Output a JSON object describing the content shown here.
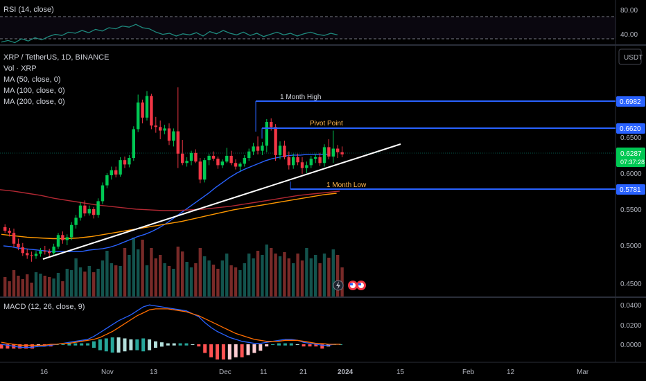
{
  "rsi": {
    "title": "RSI (14, close)",
    "ticks": [
      "80.00",
      "40.00"
    ]
  },
  "main": {
    "title": "XRP / TetherUS, 1D, BINANCE",
    "indicators": [
      "Vol · XRP",
      "MA (50, close, 0)",
      "MA (100, close, 0)",
      "MA (200, close, 0)"
    ],
    "currency": "USDT",
    "price_ticks": [
      "0.6500",
      "0.6000",
      "0.5500",
      "0.5000",
      "0.4500"
    ],
    "levels": [
      {
        "label": "1 Month High",
        "value": "0.6982",
        "color": "#2962ff"
      },
      {
        "label": "Pivot Point",
        "value": "0.6620",
        "color": "#2962ff"
      },
      {
        "label": "1 Month Low",
        "value": "0.5781",
        "color": "#2962ff"
      }
    ],
    "current": {
      "price": "0.6287",
      "countdown": "07:37:28",
      "color": "#089981"
    }
  },
  "macd": {
    "title": "MACD (12, 26, close, 9)",
    "ticks": [
      "0.0400",
      "0.0200",
      "0.0000"
    ]
  },
  "xaxis": [
    "16",
    "Nov",
    "13",
    "Dec",
    "11",
    "21",
    "2024",
    "15",
    "Feb",
    "12",
    "Mar"
  ],
  "colors": {
    "up": "#00c853",
    "down": "#f23645",
    "ma50": "#2962ff",
    "ma100": "#ff9800",
    "ma200": "#b22833",
    "macd": "#2962ff",
    "signal": "#ff6d00"
  },
  "chart_data": {
    "type": "candlestick",
    "title": "XRP / TetherUS, 1D, BINANCE",
    "ylabel": "USDT",
    "ylim": [
      0.44,
      0.73
    ],
    "candles": [
      [
        0.528,
        0.532,
        0.52,
        0.523
      ],
      [
        0.523,
        0.527,
        0.515,
        0.52
      ],
      [
        0.52,
        0.526,
        0.5,
        0.505
      ],
      [
        0.505,
        0.512,
        0.496,
        0.5
      ],
      [
        0.5,
        0.506,
        0.488,
        0.492
      ],
      [
        0.492,
        0.498,
        0.484,
        0.489
      ],
      [
        0.489,
        0.494,
        0.48,
        0.488
      ],
      [
        0.488,
        0.495,
        0.484,
        0.491
      ],
      [
        0.491,
        0.499,
        0.487,
        0.495
      ],
      [
        0.495,
        0.502,
        0.49,
        0.494
      ],
      [
        0.494,
        0.498,
        0.486,
        0.492
      ],
      [
        0.492,
        0.505,
        0.489,
        0.501
      ],
      [
        0.501,
        0.52,
        0.498,
        0.517
      ],
      [
        0.517,
        0.522,
        0.505,
        0.51
      ],
      [
        0.51,
        0.518,
        0.503,
        0.514
      ],
      [
        0.514,
        0.535,
        0.51,
        0.531
      ],
      [
        0.531,
        0.545,
        0.526,
        0.541
      ],
      [
        0.541,
        0.563,
        0.537,
        0.558
      ],
      [
        0.558,
        0.565,
        0.543,
        0.547
      ],
      [
        0.547,
        0.558,
        0.544,
        0.553
      ],
      [
        0.553,
        0.556,
        0.54,
        0.545
      ],
      [
        0.545,
        0.568,
        0.541,
        0.564
      ],
      [
        0.564,
        0.59,
        0.56,
        0.586
      ],
      [
        0.586,
        0.603,
        0.582,
        0.6
      ],
      [
        0.6,
        0.612,
        0.594,
        0.607
      ],
      [
        0.607,
        0.612,
        0.597,
        0.601
      ],
      [
        0.601,
        0.625,
        0.598,
        0.621
      ],
      [
        0.621,
        0.626,
        0.61,
        0.615
      ],
      [
        0.615,
        0.628,
        0.611,
        0.624
      ],
      [
        0.624,
        0.668,
        0.62,
        0.664
      ],
      [
        0.664,
        0.712,
        0.66,
        0.701
      ],
      [
        0.701,
        0.705,
        0.672,
        0.68
      ],
      [
        0.68,
        0.717,
        0.676,
        0.71
      ],
      [
        0.71,
        0.713,
        0.664,
        0.669
      ],
      [
        0.669,
        0.681,
        0.659,
        0.667
      ],
      [
        0.667,
        0.676,
        0.65,
        0.662
      ],
      [
        0.662,
        0.67,
        0.657,
        0.665
      ],
      [
        0.665,
        0.672,
        0.642,
        0.648
      ],
      [
        0.648,
        0.665,
        0.64,
        0.661
      ],
      [
        0.661,
        0.722,
        0.61,
        0.63
      ],
      [
        0.63,
        0.649,
        0.614,
        0.617
      ],
      [
        0.617,
        0.625,
        0.612,
        0.62
      ],
      [
        0.62,
        0.634,
        0.614,
        0.631
      ],
      [
        0.631,
        0.636,
        0.617,
        0.619
      ],
      [
        0.619,
        0.624,
        0.589,
        0.594
      ],
      [
        0.594,
        0.624,
        0.59,
        0.621
      ],
      [
        0.621,
        0.63,
        0.614,
        0.627
      ],
      [
        0.627,
        0.633,
        0.62,
        0.623
      ],
      [
        0.623,
        0.626,
        0.609,
        0.614
      ],
      [
        0.614,
        0.622,
        0.61,
        0.619
      ],
      [
        0.619,
        0.638,
        0.617,
        0.627
      ],
      [
        0.627,
        0.634,
        0.614,
        0.617
      ],
      [
        0.617,
        0.622,
        0.608,
        0.612
      ],
      [
        0.612,
        0.618,
        0.606,
        0.616
      ],
      [
        0.616,
        0.628,
        0.612,
        0.624
      ],
      [
        0.624,
        0.637,
        0.62,
        0.633
      ],
      [
        0.633,
        0.645,
        0.628,
        0.64
      ],
      [
        0.64,
        0.654,
        0.629,
        0.634
      ],
      [
        0.634,
        0.646,
        0.628,
        0.641
      ],
      [
        0.641,
        0.678,
        0.632,
        0.674
      ],
      [
        0.674,
        0.679,
        0.662,
        0.667
      ],
      [
        0.667,
        0.671,
        0.62,
        0.628
      ],
      [
        0.628,
        0.647,
        0.622,
        0.641
      ],
      [
        0.641,
        0.648,
        0.622,
        0.625
      ],
      [
        0.625,
        0.633,
        0.608,
        0.614
      ],
      [
        0.614,
        0.63,
        0.609,
        0.625
      ],
      [
        0.625,
        0.63,
        0.614,
        0.618
      ],
      [
        0.618,
        0.625,
        0.602,
        0.61
      ],
      [
        0.61,
        0.619,
        0.603,
        0.614
      ],
      [
        0.614,
        0.627,
        0.61,
        0.623
      ],
      [
        0.623,
        0.63,
        0.617,
        0.625
      ],
      [
        0.625,
        0.631,
        0.613,
        0.617
      ],
      [
        0.617,
        0.643,
        0.612,
        0.639
      ],
      [
        0.639,
        0.65,
        0.622,
        0.626
      ],
      [
        0.626,
        0.662,
        0.617,
        0.637
      ],
      [
        0.637,
        0.642,
        0.624,
        0.632
      ],
      [
        0.632,
        0.64,
        0.625,
        0.629
      ]
    ],
    "volume": [
      28,
      22,
      38,
      30,
      25,
      32,
      20,
      35,
      33,
      30,
      28,
      26,
      34,
      22,
      40,
      38,
      55,
      42,
      36,
      44,
      35,
      40,
      52,
      66,
      48,
      45,
      44,
      70,
      60,
      85,
      68,
      82,
      45,
      70,
      55,
      60,
      48,
      44,
      40,
      72,
      65,
      50,
      42,
      48,
      70,
      58,
      52,
      46,
      40,
      52,
      62,
      45,
      42,
      38,
      48,
      62,
      55,
      66,
      60,
      75,
      70,
      62,
      58,
      64,
      55,
      48,
      62,
      52,
      70,
      55,
      60,
      48,
      62,
      56,
      68,
      60,
      42
    ],
    "macd_line": [
      0.0,
      -0.001,
      -0.002,
      -0.003,
      -0.003,
      -0.003,
      -0.002,
      -0.002,
      -0.001,
      0.0,
      0.001,
      0.002,
      0.003,
      0.004,
      0.005,
      0.008,
      0.012,
      0.016,
      0.02,
      0.024,
      0.027,
      0.03,
      0.034,
      0.038,
      0.04,
      0.039,
      0.038,
      0.037,
      0.036,
      0.035,
      0.034,
      0.031,
      0.028,
      0.022,
      0.017,
      0.013,
      0.01,
      0.007,
      0.005,
      0.003,
      0.002,
      0.001,
      0.001,
      0.002,
      0.003,
      0.004,
      0.005,
      0.005,
      0.004,
      0.002,
      0.001,
      0.0,
      -0.001,
      -0.001,
      0.0,
      0.0
    ],
    "signal_line": [
      0.002,
      0.001,
      0.0,
      -0.001,
      -0.001,
      -0.001,
      -0.001,
      -0.001,
      0.0,
      0.0,
      0.001,
      0.001,
      0.002,
      0.003,
      0.004,
      0.005,
      0.007,
      0.01,
      0.013,
      0.017,
      0.021,
      0.025,
      0.029,
      0.032,
      0.035,
      0.036,
      0.036,
      0.036,
      0.035,
      0.034,
      0.033,
      0.031,
      0.029,
      0.026,
      0.023,
      0.02,
      0.017,
      0.014,
      0.011,
      0.009,
      0.007,
      0.005,
      0.004,
      0.003,
      0.003,
      0.003,
      0.004,
      0.004,
      0.004,
      0.003,
      0.002,
      0.001,
      0.001,
      0.0,
      0.0,
      0.0
    ],
    "macd_ylim": [
      -0.014,
      0.045
    ],
    "series": [
      {
        "name": "MA (50, close, 0)",
        "values": [
          0.502,
          0.501,
          0.499,
          0.498,
          0.497,
          0.496,
          0.495,
          0.494,
          0.494,
          0.494,
          0.494,
          0.494,
          0.496,
          0.497,
          0.498,
          0.5,
          0.503,
          0.507,
          0.511,
          0.515,
          0.518,
          0.522,
          0.527,
          0.533,
          0.54,
          0.547,
          0.554,
          0.561,
          0.568,
          0.575,
          0.583,
          0.59,
          0.597,
          0.603,
          0.608,
          0.612,
          0.616,
          0.62,
          0.623,
          0.625,
          0.627,
          0.628,
          0.628,
          0.629,
          0.629,
          0.629,
          0.629
        ]
      },
      {
        "name": "MA (100, close, 0)",
        "values": [
          0.518,
          0.516,
          0.514,
          0.513,
          0.512,
          0.512,
          0.513,
          0.515,
          0.518,
          0.521,
          0.524,
          0.527,
          0.53,
          0.533,
          0.536,
          0.54,
          0.544,
          0.548,
          0.552,
          0.555,
          0.558,
          0.561,
          0.564,
          0.567,
          0.57,
          0.573,
          0.575
        ]
      },
      {
        "name": "MA (200, close, 0)",
        "values": [
          0.58,
          0.578,
          0.575,
          0.572,
          0.568,
          0.565,
          0.562,
          0.559,
          0.557,
          0.555,
          0.553,
          0.552,
          0.551,
          0.551,
          0.552,
          0.553,
          0.555,
          0.557,
          0.56,
          0.563,
          0.566,
          0.569,
          0.572,
          0.574,
          0.576,
          0.578
        ]
      }
    ],
    "rsi_values": [
      34,
      37,
      33,
      40,
      36,
      42,
      38,
      44,
      48,
      46,
      52,
      50,
      55,
      51,
      57,
      54,
      60,
      58,
      63,
      61,
      66,
      60,
      58,
      52,
      48,
      50,
      45,
      49,
      47,
      51,
      45,
      53,
      49,
      55,
      50,
      47,
      52,
      46,
      50,
      44,
      48,
      52,
      47,
      50,
      45,
      49,
      52,
      48,
      46,
      50,
      47
    ]
  }
}
